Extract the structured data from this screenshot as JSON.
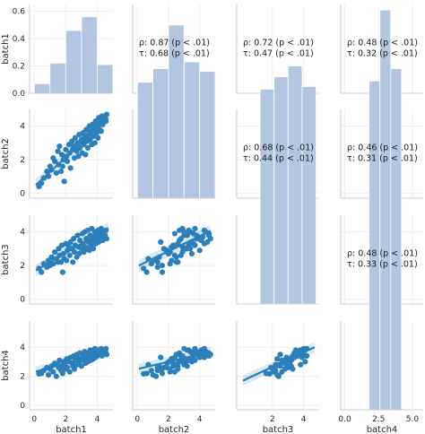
{
  "chart_data": {
    "type": "scatter",
    "variables": [
      "batch1",
      "batch2",
      "batch3",
      "batch4"
    ],
    "axis_ranges": {
      "batch1": [
        -0.3,
        5.0
      ],
      "batch2": [
        -0.3,
        5.0
      ],
      "batch3": [
        -0.3,
        5.0
      ],
      "batch4": [
        -0.3,
        5.8
      ]
    },
    "x_ticks": {
      "batch1": [
        0,
        2,
        4
      ],
      "batch2": [
        0,
        2,
        4
      ],
      "batch3": [
        2,
        4
      ],
      "batch4": [
        0.0,
        2.5,
        5.0
      ]
    },
    "x_tick_labels": {
      "batch1": [
        "0",
        "2",
        "4"
      ],
      "batch2": [
        "0",
        "2",
        "4"
      ],
      "batch3": [
        "2",
        "4"
      ],
      "batch4": [
        "0.0",
        "2.5",
        "5.0"
      ]
    },
    "y_ticks": {
      "batch2": [
        0,
        2,
        4
      ],
      "batch3": [
        0,
        2,
        4
      ],
      "batch4": [
        0,
        2,
        4
      ]
    },
    "diag_hist_ylim": [
      0,
      0.65
    ],
    "diag_hist_ticks": [
      0.0,
      0.2,
      0.4,
      0.6
    ],
    "diag_hist_tick_labels": [
      "0.0",
      "0.2",
      "0.4",
      "0.6"
    ],
    "histograms": {
      "batch1": {
        "edges": [
          0,
          1,
          2,
          3,
          4,
          5
        ],
        "density": [
          0.07,
          0.22,
          0.46,
          0.56,
          0.21
        ]
      },
      "batch2": {
        "edges": [
          0,
          1,
          2,
          3,
          4,
          5
        ],
        "density": [
          0.08,
          0.18,
          0.5,
          0.23,
          0.16
        ]
      },
      "batch3": {
        "edges": [
          1.2,
          2.1,
          3.0,
          3.9,
          4.8
        ],
        "density": [
          0.03,
          0.12,
          0.2,
          0.05
        ]
      },
      "batch4": {
        "edges": [
          1.8,
          2.6,
          3.4,
          4.2
        ],
        "density": [
          0.09,
          0.61,
          0.18
        ]
      }
    },
    "grid": true,
    "fits": {
      "batch2_vs_batch1": [
        0.4,
        0.87
      ],
      "batch3_vs_batch1": [
        1.65,
        0.55
      ],
      "batch3_vs_batch2": [
        1.95,
        0.45
      ],
      "batch4_vs_batch1": [
        2.3,
        0.3
      ],
      "batch4_vs_batch2": [
        2.5,
        0.25
      ],
      "batch4_vs_batch3": [
        1.65,
        0.5
      ]
    },
    "correlations": [
      {
        "row": 0,
        "col": 1,
        "rho": "ρ: 0.87 (p < .01)",
        "tau": "τ: 0.68 (p < .01)"
      },
      {
        "row": 0,
        "col": 2,
        "rho": "ρ: 0.72 (p < .01)",
        "tau": "τ: 0.47 (p < .01)"
      },
      {
        "row": 0,
        "col": 3,
        "rho": "ρ: 0.48 (p < .01)",
        "tau": "τ: 0.32 (p < .01)"
      },
      {
        "row": 1,
        "col": 2,
        "rho": "ρ: 0.68 (p < .01)",
        "tau": "τ: 0.44 (p < .01)"
      },
      {
        "row": 1,
        "col": 3,
        "rho": "ρ: 0.46 (p < .01)",
        "tau": "τ: 0.31 (p < .01)"
      },
      {
        "row": 2,
        "col": 3,
        "rho": "ρ: 0.48 (p < .01)",
        "tau": "τ: 0.33 (p < .01)"
      }
    ],
    "points": [
      [
        0.3,
        0.4,
        1.82,
        2.17
      ],
      [
        0.45,
        0.6,
        1.6,
        2.2
      ],
      [
        0.6,
        0.9,
        2.1,
        2.4
      ],
      [
        0.8,
        1.3,
        1.9,
        2.6
      ],
      [
        0.9,
        1.0,
        2.3,
        2.1
      ],
      [
        1.0,
        1.6,
        2.0,
        2.5
      ],
      [
        1.1,
        1.4,
        2.5,
        2.7
      ],
      [
        1.2,
        2.1,
        2.1,
        2.3
      ],
      [
        1.3,
        1.9,
        2.8,
        2.9
      ],
      [
        1.4,
        1.2,
        2.4,
        2.0
      ],
      [
        1.5,
        2.5,
        2.2,
        2.8
      ],
      [
        1.55,
        1.7,
        3.0,
        2.6
      ],
      [
        1.6,
        2.8,
        2.6,
        3.1
      ],
      [
        1.7,
        1.3,
        2.2,
        2.4
      ],
      [
        1.75,
        2.3,
        3.2,
        2.7
      ],
      [
        1.8,
        1.6,
        1.6,
        2.2
      ],
      [
        1.85,
        2.0,
        2.7,
        3.0
      ],
      [
        1.9,
        0.7,
        2.4,
        2.8
      ],
      [
        2.0,
        2.6,
        3.3,
        2.5
      ],
      [
        2.05,
        2.2,
        2.3,
        3.2
      ],
      [
        2.1,
        1.9,
        2.9,
        2.6
      ],
      [
        2.2,
        2.9,
        3.1,
        3.0
      ],
      [
        2.25,
        2.4,
        2.6,
        2.3
      ],
      [
        2.3,
        1.5,
        3.4,
        3.3
      ],
      [
        2.4,
        3.1,
        3.0,
        2.9
      ],
      [
        2.45,
        2.6,
        2.2,
        2.7
      ],
      [
        2.5,
        2.8,
        3.6,
        3.4
      ],
      [
        2.55,
        2.1,
        2.8,
        2.5
      ],
      [
        2.6,
        3.3,
        3.2,
        3.1
      ],
      [
        2.7,
        2.5,
        2.5,
        3.5
      ],
      [
        2.75,
        3.0,
        3.8,
        2.8
      ],
      [
        2.8,
        2.2,
        3.1,
        3.2
      ],
      [
        2.85,
        3.5,
        2.7,
        3.0
      ],
      [
        2.9,
        2.7,
        3.5,
        3.6
      ],
      [
        3.0,
        3.2,
        3.0,
        2.7
      ],
      [
        3.05,
        2.4,
        3.9,
        3.3
      ],
      [
        3.1,
        3.6,
        3.3,
        3.4
      ],
      [
        3.15,
        2.9,
        2.8,
        3.1
      ],
      [
        3.2,
        3.4,
        4.0,
        3.7
      ],
      [
        3.25,
        2.3,
        3.1,
        2.9
      ],
      [
        3.3,
        3.8,
        3.6,
        3.5
      ],
      [
        3.35,
        3.1,
        3.0,
        3.2
      ],
      [
        3.4,
        2.7,
        4.1,
        3.0
      ],
      [
        3.45,
        3.5,
        3.4,
        3.6
      ],
      [
        3.5,
        4.0,
        2.9,
        3.3
      ],
      [
        3.55,
        3.2,
        3.8,
        3.8
      ],
      [
        3.6,
        3.7,
        3.2,
        3.1
      ],
      [
        3.65,
        2.9,
        4.2,
        3.4
      ],
      [
        3.7,
        4.1,
        3.5,
        3.7
      ],
      [
        3.75,
        3.4,
        3.0,
        3.2
      ],
      [
        3.8,
        3.9,
        3.7,
        3.5
      ],
      [
        3.85,
        3.0,
        4.0,
        3.9
      ],
      [
        3.9,
        4.3,
        3.3,
        3.3
      ],
      [
        3.95,
        3.6,
        3.9,
        3.6
      ],
      [
        4.0,
        4.0,
        3.6,
        3.4
      ],
      [
        4.05,
        3.3,
        4.1,
        3.8
      ],
      [
        4.1,
        4.5,
        3.4,
        3.5
      ],
      [
        4.15,
        3.8,
        3.8,
        3.7
      ],
      [
        4.2,
        4.2,
        3.7,
        3.6
      ],
      [
        4.25,
        3.7,
        4.2,
        3.9
      ],
      [
        4.3,
        4.6,
        3.9,
        3.4
      ],
      [
        4.35,
        4.1,
        3.5,
        3.8
      ],
      [
        4.4,
        4.4,
        4.0,
        3.7
      ],
      [
        4.5,
        4.6,
        3.8,
        3.6
      ],
      [
        4.55,
        4.3,
        4.1,
        3.9
      ],
      [
        4.6,
        4.7,
        3.6,
        3.5
      ]
    ]
  }
}
